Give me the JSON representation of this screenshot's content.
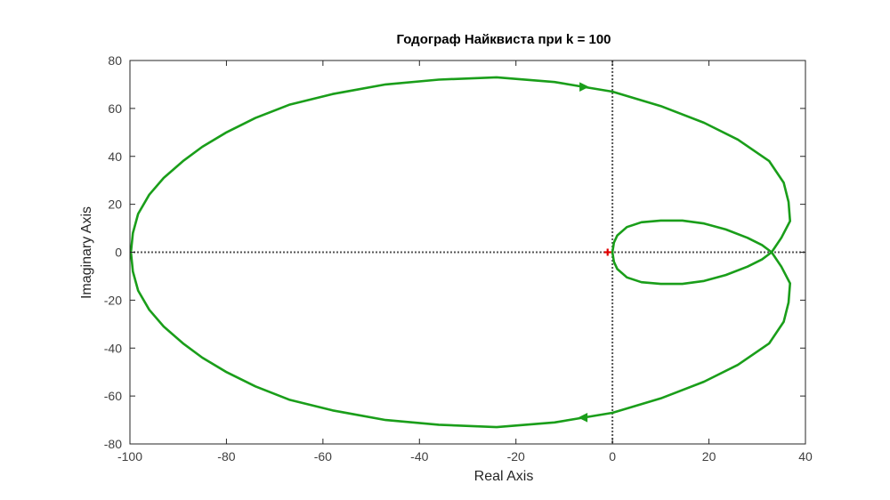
{
  "chart_data": {
    "type": "line",
    "title": "Годограф Найквиста при k = 100",
    "xlabel": "Real Axis",
    "ylabel": "Imaginary Axis",
    "xlim": [
      -100,
      40
    ],
    "ylim": [
      -80,
      80
    ],
    "x_ticks": [
      -100,
      -80,
      -60,
      -40,
      -20,
      0,
      20,
      40
    ],
    "y_ticks": [
      -80,
      -60,
      -40,
      -20,
      0,
      20,
      40,
      60,
      80
    ],
    "x_tick_labels": [
      "-100",
      "-80",
      "-60",
      "-40",
      "-20",
      "0",
      "20",
      "40"
    ],
    "y_tick_labels": [
      "-80",
      "-60",
      "-40",
      "-20",
      "0",
      "20",
      "40",
      "60",
      "80"
    ],
    "grid": false,
    "colors": {
      "curve": "#1a9e1a",
      "critical_point": "#e00000",
      "zero_lines": "#555555",
      "axes": "#262626"
    },
    "critical_point": {
      "x": -1,
      "y": 0,
      "marker": "+"
    },
    "series": [
      {
        "x": [
          0,
          0.3,
          1,
          3,
          6,
          10,
          14.5,
          19,
          23.5,
          28,
          31,
          33
        ],
        "y": [
          0,
          4,
          7,
          10.5,
          12.5,
          13.2,
          13.2,
          12,
          9.5,
          6,
          3,
          0
        ]
      },
      {
        "x": [
          33,
          35,
          36.8,
          36.5,
          35.5,
          32.5,
          26,
          19,
          10,
          0,
          -6,
          -12,
          -24,
          -36,
          -47,
          -58,
          -67,
          -74,
          -80,
          -85,
          -89,
          -93,
          -96,
          -98.3,
          -99.4,
          -99.8
        ],
        "y": [
          0,
          6,
          13,
          21,
          29,
          38,
          47,
          54,
          61,
          67,
          69,
          71,
          73,
          72,
          70,
          66,
          61.5,
          56,
          50,
          44,
          38,
          31,
          24,
          16,
          8,
          0
        ]
      },
      {
        "x": [
          -99.8,
          -99.4,
          -98.3,
          -96,
          -93,
          -89,
          -85,
          -80,
          -74,
          -67,
          -58,
          -47,
          -36,
          -24,
          -12,
          -6,
          0,
          10,
          19,
          26,
          32.5,
          35.5,
          36.5,
          36.8,
          35,
          33
        ],
        "y": [
          0,
          -8,
          -16,
          -24,
          -31,
          -38,
          -44,
          -50,
          -56,
          -61.5,
          -66,
          -70,
          -72,
          -73,
          -71,
          -69,
          -67,
          -61,
          -54,
          -47,
          -38,
          -29,
          -21,
          -13,
          -6,
          0
        ]
      },
      {
        "x": [
          33,
          31,
          28,
          23.5,
          19,
          14.5,
          10,
          6,
          3,
          1,
          0.3,
          0
        ],
        "y": [
          0,
          -3,
          -6,
          -9.5,
          -12,
          -13.2,
          -13.2,
          -12.5,
          -10.5,
          -7,
          -4,
          0
        ]
      }
    ],
    "arrows": [
      {
        "x": -6,
        "y": 69,
        "direction": "right"
      },
      {
        "x": -6,
        "y": -69,
        "direction": "left"
      }
    ]
  }
}
